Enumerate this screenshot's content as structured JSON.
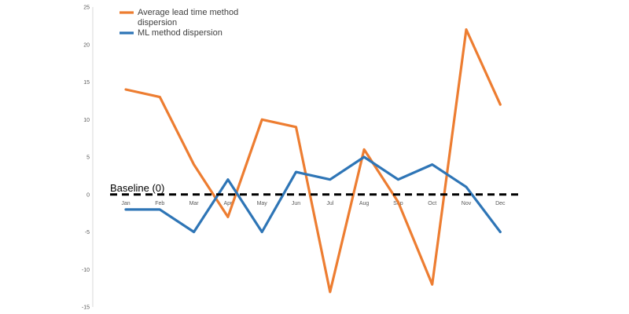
{
  "chart_data": {
    "type": "line",
    "categories": [
      "Jan",
      "Feb",
      "Mar",
      "Apr",
      "May",
      "Jun",
      "Jul",
      "Aug",
      "Sep",
      "Oct",
      "Nov",
      "Dec"
    ],
    "series": [
      {
        "name_lines": [
          "Average lead time method",
          "dispersion"
        ],
        "color": "#ED7D31",
        "values": [
          14,
          13,
          4,
          -3,
          10,
          9,
          -13,
          6,
          -1,
          -12,
          22,
          12
        ]
      },
      {
        "name_lines": [
          "ML method dispersion"
        ],
        "color": "#2E75B6",
        "values": [
          -2,
          -2,
          -5,
          2,
          -5,
          3,
          2,
          5,
          2,
          4,
          1,
          -5
        ]
      }
    ],
    "baseline": {
      "label": "Baseline (0)",
      "value": 0,
      "color": "#000000"
    },
    "ylim": [
      -15,
      25
    ],
    "yticks": [
      "25",
      "20",
      "15",
      "10",
      "5",
      "0",
      "-5",
      "-10",
      "-15"
    ],
    "grid": false,
    "legend": "top-left"
  }
}
